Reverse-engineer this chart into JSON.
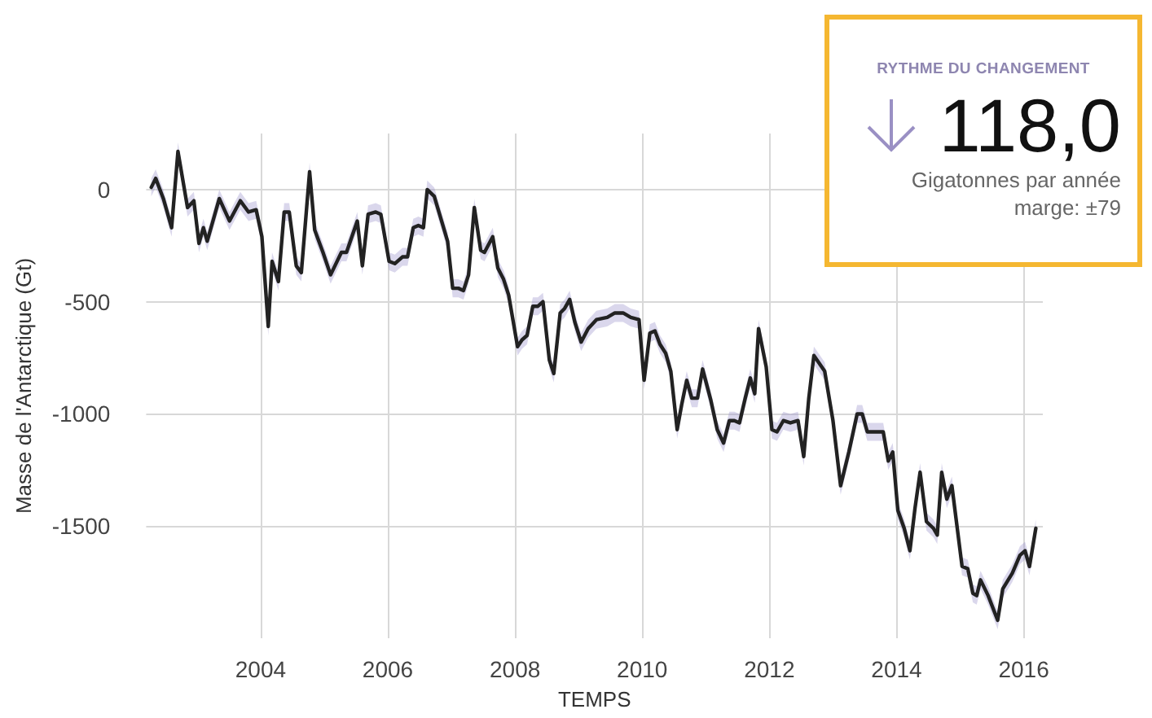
{
  "chart_data": {
    "type": "line",
    "xlabel": "TEMPS",
    "ylabel": "Masse de l'Antarctique (Gt)",
    "annotations": [
      "RYTHME DU CHANGEMENT",
      "118,0",
      "Gigatonnes par année",
      "marge: ±79"
    ],
    "xlim": [
      2002.2,
      2016.3
    ],
    "xticks": [
      2004,
      2006,
      2008,
      2010,
      2012,
      2014,
      2016
    ],
    "ylim": [
      -2000,
      250
    ],
    "yticks": [
      0,
      -500,
      -1000,
      -1500
    ],
    "grid": true,
    "marker": "none",
    "line_style": "solid",
    "series": [
      {
        "color": "#222222",
        "x": [
          2002.28,
          2002.35,
          2002.47,
          2002.6,
          2002.7,
          2002.85,
          2002.95,
          2003.03,
          2003.1,
          2003.16,
          2003.35,
          2003.51,
          2003.68,
          2003.81,
          2003.93,
          2004.02,
          2004.12,
          2004.18,
          2004.28,
          2004.37,
          2004.45,
          2004.56,
          2004.64,
          2004.77,
          2004.85,
          2004.98,
          2005.1,
          2005.27,
          2005.35,
          2005.52,
          2005.6,
          2005.69,
          2005.81,
          2005.89,
          2006.02,
          2006.11,
          2006.23,
          2006.31,
          2006.4,
          2006.48,
          2006.56,
          2006.62,
          2006.73,
          2006.94,
          2007.02,
          2007.11,
          2007.19,
          2007.27,
          2007.36,
          2007.46,
          2007.52,
          2007.65,
          2007.73,
          2007.82,
          2007.9,
          2008.04,
          2008.11,
          2008.19,
          2008.28,
          2008.36,
          2008.44,
          2008.54,
          2008.61,
          2008.71,
          2008.78,
          2008.86,
          2008.94,
          2009.04,
          2009.15,
          2009.28,
          2009.45,
          2009.57,
          2009.7,
          2009.82,
          2009.95,
          2010.03,
          2010.12,
          2010.2,
          2010.28,
          2010.37,
          2010.45,
          2010.55,
          2010.62,
          2010.7,
          2010.78,
          2010.87,
          2010.95,
          2011.08,
          2011.18,
          2011.28,
          2011.37,
          2011.45,
          2011.53,
          2011.62,
          2011.7,
          2011.77,
          2011.83,
          2011.95,
          2012.04,
          2012.12,
          2012.22,
          2012.33,
          2012.45,
          2012.54,
          2012.62,
          2012.7,
          2012.87,
          2013,
          2013.12,
          2013.25,
          2013.38,
          2013.46,
          2013.54,
          2013.67,
          2013.79,
          2013.87,
          2013.94,
          2014.02,
          2014.12,
          2014.21,
          2014.29,
          2014.37,
          2014.47,
          2014.58,
          2014.64,
          2014.71,
          2014.79,
          2014.87,
          2015.03,
          2015.12,
          2015.2,
          2015.26,
          2015.32,
          2015.44,
          2015.59,
          2015.67,
          2015.82,
          2015.94,
          2016.02,
          2016.09,
          2016.19
        ],
        "values": [
          10,
          50,
          -40,
          -170,
          170,
          -80,
          -50,
          -240,
          -170,
          -230,
          -40,
          -140,
          -50,
          -100,
          -90,
          -210,
          -610,
          -320,
          -410,
          -100,
          -100,
          -340,
          -370,
          80,
          -180,
          -280,
          -380,
          -280,
          -280,
          -140,
          -340,
          -110,
          -100,
          -110,
          -320,
          -330,
          -300,
          -300,
          -170,
          -160,
          -170,
          0,
          -30,
          -230,
          -440,
          -440,
          -450,
          -380,
          -80,
          -270,
          -280,
          -210,
          -350,
          -400,
          -470,
          -700,
          -670,
          -650,
          -520,
          -520,
          -500,
          -760,
          -820,
          -550,
          -530,
          -490,
          -590,
          -680,
          -620,
          -580,
          -570,
          -550,
          -550,
          -570,
          -580,
          -850,
          -640,
          -630,
          -690,
          -730,
          -810,
          -1070,
          -960,
          -850,
          -930,
          -930,
          -800,
          -940,
          -1070,
          -1130,
          -1030,
          -1030,
          -1040,
          -930,
          -840,
          -910,
          -620,
          -790,
          -1070,
          -1080,
          -1030,
          -1040,
          -1030,
          -1190,
          -930,
          -740,
          -810,
          -1030,
          -1320,
          -1170,
          -1000,
          -1000,
          -1080,
          -1080,
          -1080,
          -1210,
          -1170,
          -1430,
          -1510,
          -1610,
          -1420,
          -1260,
          -1480,
          -1510,
          -1540,
          -1260,
          -1380,
          -1320,
          -1680,
          -1690,
          -1800,
          -1810,
          -1740,
          -1810,
          -1920,
          -1780,
          -1710,
          -1630,
          -1610,
          -1680,
          -1510
        ],
        "lower": [
          -30,
          10,
          -80,
          -210,
          130,
          -120,
          -90,
          -280,
          -210,
          -270,
          -80,
          -180,
          -90,
          -140,
          -130,
          -250,
          -650,
          -360,
          -450,
          -140,
          -140,
          -380,
          -410,
          40,
          -220,
          -320,
          -420,
          -320,
          -320,
          -180,
          -380,
          -150,
          -140,
          -150,
          -360,
          -370,
          -340,
          -340,
          -210,
          -200,
          -210,
          -40,
          -70,
          -270,
          -480,
          -480,
          -490,
          -420,
          -120,
          -310,
          -320,
          -250,
          -390,
          -440,
          -510,
          -740,
          -710,
          -690,
          -560,
          -560,
          -540,
          -800,
          -860,
          -590,
          -570,
          -530,
          -630,
          -720,
          -660,
          -620,
          -610,
          -590,
          -590,
          -610,
          -620,
          -890,
          -680,
          -670,
          -730,
          -770,
          -850,
          -1110,
          -1000,
          -890,
          -970,
          -970,
          -840,
          -980,
          -1110,
          -1170,
          -1070,
          -1070,
          -1080,
          -970,
          -880,
          -950,
          -660,
          -830,
          -1110,
          -1120,
          -1070,
          -1080,
          -1070,
          -1230,
          -970,
          -780,
          -850,
          -1070,
          -1360,
          -1210,
          -1040,
          -1040,
          -1120,
          -1120,
          -1120,
          -1250,
          -1210,
          -1470,
          -1550,
          -1650,
          -1460,
          -1300,
          -1520,
          -1550,
          -1580,
          -1300,
          -1420,
          -1360,
          -1720,
          -1730,
          -1840,
          -1850,
          -1780,
          -1850,
          -1960,
          -1820,
          -1750,
          -1670,
          -1650,
          -1720,
          -1550
        ],
        "upper": [
          50,
          90,
          0,
          -130,
          210,
          -40,
          -10,
          -200,
          -130,
          -190,
          0,
          -100,
          -10,
          -60,
          -50,
          -170,
          -570,
          -280,
          -370,
          -60,
          -60,
          -300,
          -330,
          120,
          -140,
          -240,
          -340,
          -240,
          -240,
          -100,
          -300,
          -70,
          -60,
          -70,
          -280,
          -290,
          -260,
          -260,
          -130,
          -120,
          -130,
          40,
          10,
          -190,
          -400,
          -400,
          -410,
          -340,
          -40,
          -230,
          -240,
          -170,
          -310,
          -360,
          -430,
          -660,
          -630,
          -610,
          -480,
          -480,
          -460,
          -720,
          -780,
          -510,
          -490,
          -450,
          -550,
          -640,
          -580,
          -540,
          -530,
          -510,
          -510,
          -530,
          -540,
          -810,
          -600,
          -590,
          -650,
          -690,
          -770,
          -1030,
          -920,
          -810,
          -890,
          -890,
          -760,
          -900,
          -1030,
          -1090,
          -990,
          -990,
          -1000,
          -890,
          -800,
          -870,
          -580,
          -750,
          -1030,
          -1040,
          -990,
          -1000,
          -990,
          -1150,
          -890,
          -700,
          -770,
          -990,
          -1280,
          -1130,
          -960,
          -960,
          -1040,
          -1040,
          -1040,
          -1170,
          -1130,
          -1390,
          -1470,
          -1570,
          -1380,
          -1220,
          -1440,
          -1470,
          -1500,
          -1220,
          -1340,
          -1280,
          -1640,
          -1650,
          -1760,
          -1770,
          -1700,
          -1770,
          -1880,
          -1740,
          -1670,
          -1590,
          -1570,
          -1640,
          -1470
        ]
      }
    ]
  }
}
